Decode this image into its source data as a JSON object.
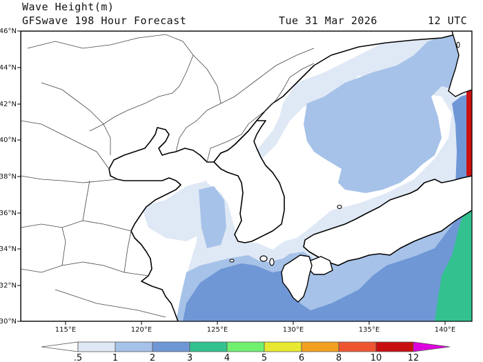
{
  "header": {
    "title": "Wave Height(m)",
    "model": "GFSwave 198 Hour Forecast",
    "valid_date": "Tue 31 Mar 2026",
    "valid_time": "12 UTC"
  },
  "axes": {
    "lon_labels": [
      "115°E",
      "120°E",
      "125°E",
      "130°E",
      "135°E",
      "140°E"
    ],
    "lat_labels": [
      "30°N",
      "32°N",
      "34°N",
      "36°N",
      "38°N",
      "40°N",
      "42°N",
      "44°N",
      "46°N"
    ]
  },
  "colorbar": {
    "labels": [
      ".5",
      "1",
      "2",
      "3",
      "4",
      "5",
      "6",
      "8",
      "10",
      "12"
    ],
    "colors": {
      "below": "#ffffff",
      "c05": "#dfe8f5",
      "c1": "#a6c2e8",
      "c2": "#6f97d6",
      "c3": "#33c28f",
      "c4": "#6ff06f",
      "c5": "#e8e830",
      "c6": "#f2a020",
      "c8": "#ee5530",
      "c10": "#c80f0f",
      "c12": "#dd00dd"
    }
  },
  "palette": {
    "land": "#ffffff",
    "coast": "#000000",
    "border": "#444444"
  }
}
